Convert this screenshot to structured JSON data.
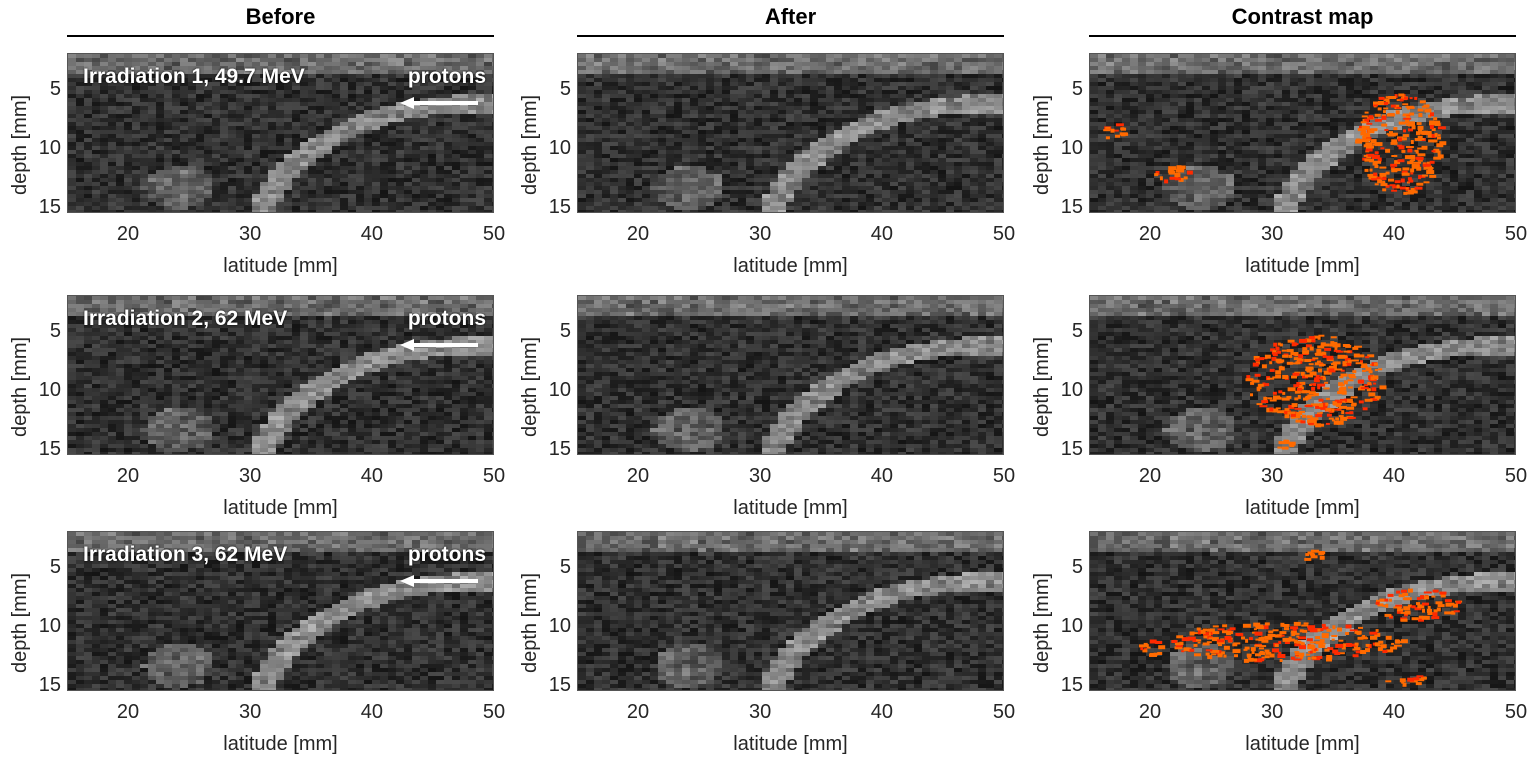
{
  "columns": [
    {
      "title": "Before"
    },
    {
      "title": "After"
    },
    {
      "title": "Contrast map"
    }
  ],
  "rows": [
    {
      "label": "Irradiation 1, 49.7 MeV",
      "beam": "protons"
    },
    {
      "label": "Irradiation 2, 62 MeV",
      "beam": "protons"
    },
    {
      "label": "Irradiation 3, 62 MeV",
      "beam": "protons"
    }
  ],
  "axes": {
    "xlabel": "latitude [mm]",
    "ylabel": "depth [mm]",
    "xticks": [
      "20",
      "30",
      "40",
      "50"
    ],
    "yticks": [
      "5",
      "10",
      "15"
    ]
  },
  "colors": {
    "overlay": "#ff6a00",
    "overlay_dark": "#ff2a00",
    "background": "#1a1a1a"
  }
}
